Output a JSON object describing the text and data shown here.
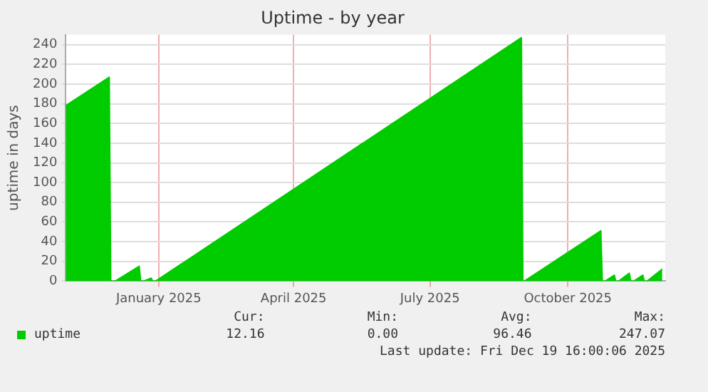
{
  "chart_data": {
    "type": "area",
    "title": "Uptime - by year",
    "ylabel": "uptime in days",
    "x": [
      "2024-10-31",
      "2024-11-29",
      "2024-11-30",
      "2024-12-03",
      "2024-12-19",
      "2024-12-20",
      "2024-12-22",
      "2024-12-27",
      "2024-12-28",
      "2024-12-30",
      "2025-08-31",
      "2025-09-01",
      "2025-09-02",
      "2025-10-23",
      "2025-10-24",
      "2025-10-26",
      "2025-11-01",
      "2025-11-02",
      "2025-11-04",
      "2025-11-11",
      "2025-11-12",
      "2025-11-14",
      "2025-11-20",
      "2025-11-21",
      "2025-11-23",
      "2025-12-03"
    ],
    "series": [
      {
        "name": "uptime",
        "color": "#00cc00",
        "values": [
          178,
          207,
          0,
          0,
          15,
          0,
          0,
          3,
          0,
          0,
          247.07,
          0,
          0,
          51,
          0,
          0,
          6,
          0,
          0,
          8,
          0,
          0,
          6,
          0,
          0,
          12.16
        ]
      }
    ],
    "xlim": [
      "2024-10-31",
      "2025-12-05"
    ],
    "xticks": [
      {
        "value": "2025-01-01",
        "label": "January 2025"
      },
      {
        "value": "2025-04-01",
        "label": "April 2025"
      },
      {
        "value": "2025-07-01",
        "label": "July 2025"
      },
      {
        "value": "2025-10-01",
        "label": "October 2025"
      }
    ],
    "ylim": [
      0,
      250
    ],
    "yticks": [
      0,
      20,
      40,
      60,
      80,
      100,
      120,
      140,
      160,
      180,
      200,
      220,
      240
    ],
    "grid": true,
    "legend": "bottom left",
    "annotations": [
      "Cur:",
      "Min:",
      "Avg:",
      "Max:",
      "12.16",
      "0.00",
      "96.46",
      "247.07",
      "Last update: Fri Dec 19 16:00:06 2025"
    ]
  }
}
